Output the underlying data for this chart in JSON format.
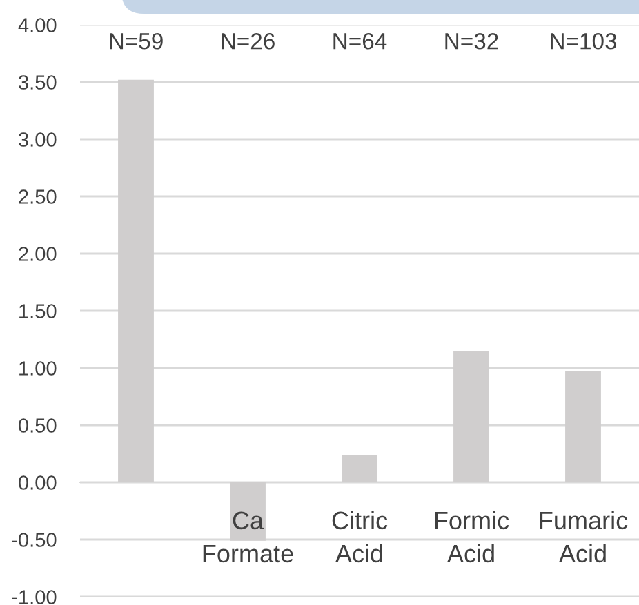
{
  "chart_data": {
    "type": "bar",
    "categories": [
      null,
      "Ca Formate",
      "Citric Acid",
      "Formic Acid",
      "Fumaric Acid"
    ],
    "values": [
      3.52,
      -0.51,
      0.24,
      1.15,
      0.97
    ],
    "color": "#d0cece",
    "ylim": [
      -1,
      4
    ],
    "yticks": [
      {
        "value": -1,
        "label": "-1.00"
      },
      {
        "value": -0.5,
        "label": "-0.50"
      },
      {
        "value": 0,
        "label": "0.00"
      },
      {
        "value": 0.5,
        "label": "0.50"
      },
      {
        "value": 1,
        "label": "1.00"
      },
      {
        "value": 1.5,
        "label": "1.50"
      },
      {
        "value": 2,
        "label": "2.00"
      },
      {
        "value": 2.5,
        "label": "2.50"
      },
      {
        "value": 3,
        "label": "3.00"
      },
      {
        "value": 3.5,
        "label": "3.50"
      },
      {
        "value": 4,
        "label": "4.00"
      }
    ],
    "grid": "y",
    "annotations": [
      "N=59",
      "N=26",
      "N=64",
      "N=32",
      "N=103"
    ]
  }
}
